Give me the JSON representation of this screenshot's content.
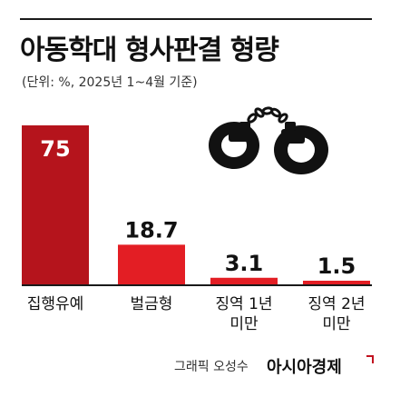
{
  "header": {
    "title": "아동학대 형사판결 형량",
    "subtitle": "(단위: %, 2025년 1~4월 기준)"
  },
  "footer": {
    "credit": "그래픽 오성수",
    "brand": "아시아경제"
  },
  "illustration": {
    "icon": "handcuffs-icon"
  },
  "colors": {
    "bar_dark": "#b5141c",
    "bar": "#e31e24",
    "value_on_bar": "#ffffff",
    "text": "#111111",
    "baseline": "#1a1a1a"
  },
  "chart_data": {
    "type": "bar",
    "title": "아동학대 형사판결 형량",
    "subtitle": "(단위: %, 2025년 1~4월 기준)",
    "categories": [
      "집행유예",
      "벌금형",
      "징역 1년 미만",
      "징역 2년 미만"
    ],
    "category_lines": [
      [
        "집행유예"
      ],
      [
        "벌금형"
      ],
      [
        "징역 1년",
        "미만"
      ],
      [
        "징역 2년",
        "미만"
      ]
    ],
    "values": [
      75,
      18.7,
      3.1,
      1.5
    ],
    "value_labels": [
      "75",
      "18.7",
      "3.1",
      "1.5"
    ],
    "unit": "%",
    "ylim": [
      0,
      75
    ],
    "grid": false,
    "legend": "none"
  }
}
